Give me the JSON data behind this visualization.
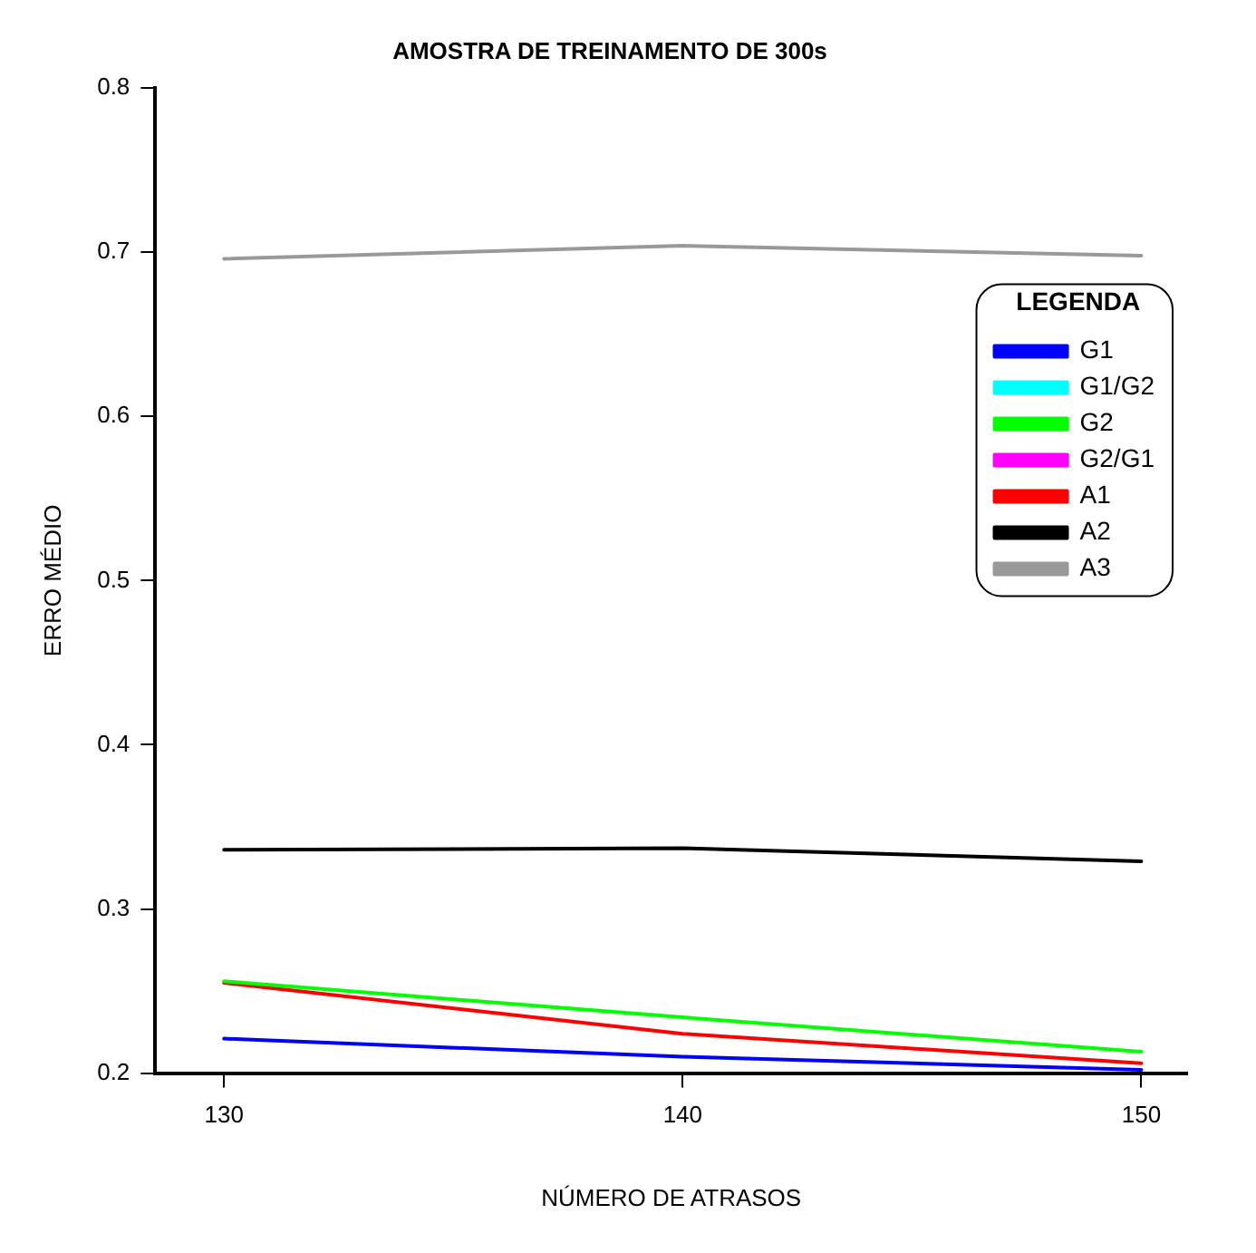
{
  "chart_data": {
    "type": "line",
    "title": "AMOSTRA DE TREINAMENTO DE 300s",
    "xlabel": "NÚMERO DE ATRASOS",
    "ylabel": "ERRO MÉDIO",
    "legend_title": "LEGENDA",
    "x": [
      130,
      140,
      150
    ],
    "series": [
      {
        "name": "G1",
        "color": "#0000ff",
        "values": [
          0.221,
          0.21,
          0.202
        ]
      },
      {
        "name": "G1/G2",
        "color": "#00ffff",
        "values": [
          null,
          null,
          null
        ]
      },
      {
        "name": "G2",
        "color": "#00ff00",
        "values": [
          0.256,
          0.234,
          0.213
        ]
      },
      {
        "name": "G2/G1",
        "color": "#ff00ff",
        "values": [
          null,
          null,
          null
        ]
      },
      {
        "name": "A1",
        "color": "#ff0000",
        "values": [
          0.255,
          0.224,
          0.206
        ]
      },
      {
        "name": "A2",
        "color": "#000000",
        "values": [
          0.336,
          0.337,
          0.329
        ]
      },
      {
        "name": "A3",
        "color": "#999999",
        "values": [
          0.696,
          0.704,
          0.698
        ]
      }
    ],
    "xlim": [
      128.5,
      151
    ],
    "xticks": [
      130,
      140,
      150
    ],
    "ylim": [
      0.2,
      0.8
    ],
    "yticks": [
      0.2,
      0.3,
      0.4,
      0.5,
      0.6,
      0.7,
      0.8
    ],
    "grid": false,
    "legend": "top right",
    "marker": "none",
    "line_style": "solid"
  }
}
